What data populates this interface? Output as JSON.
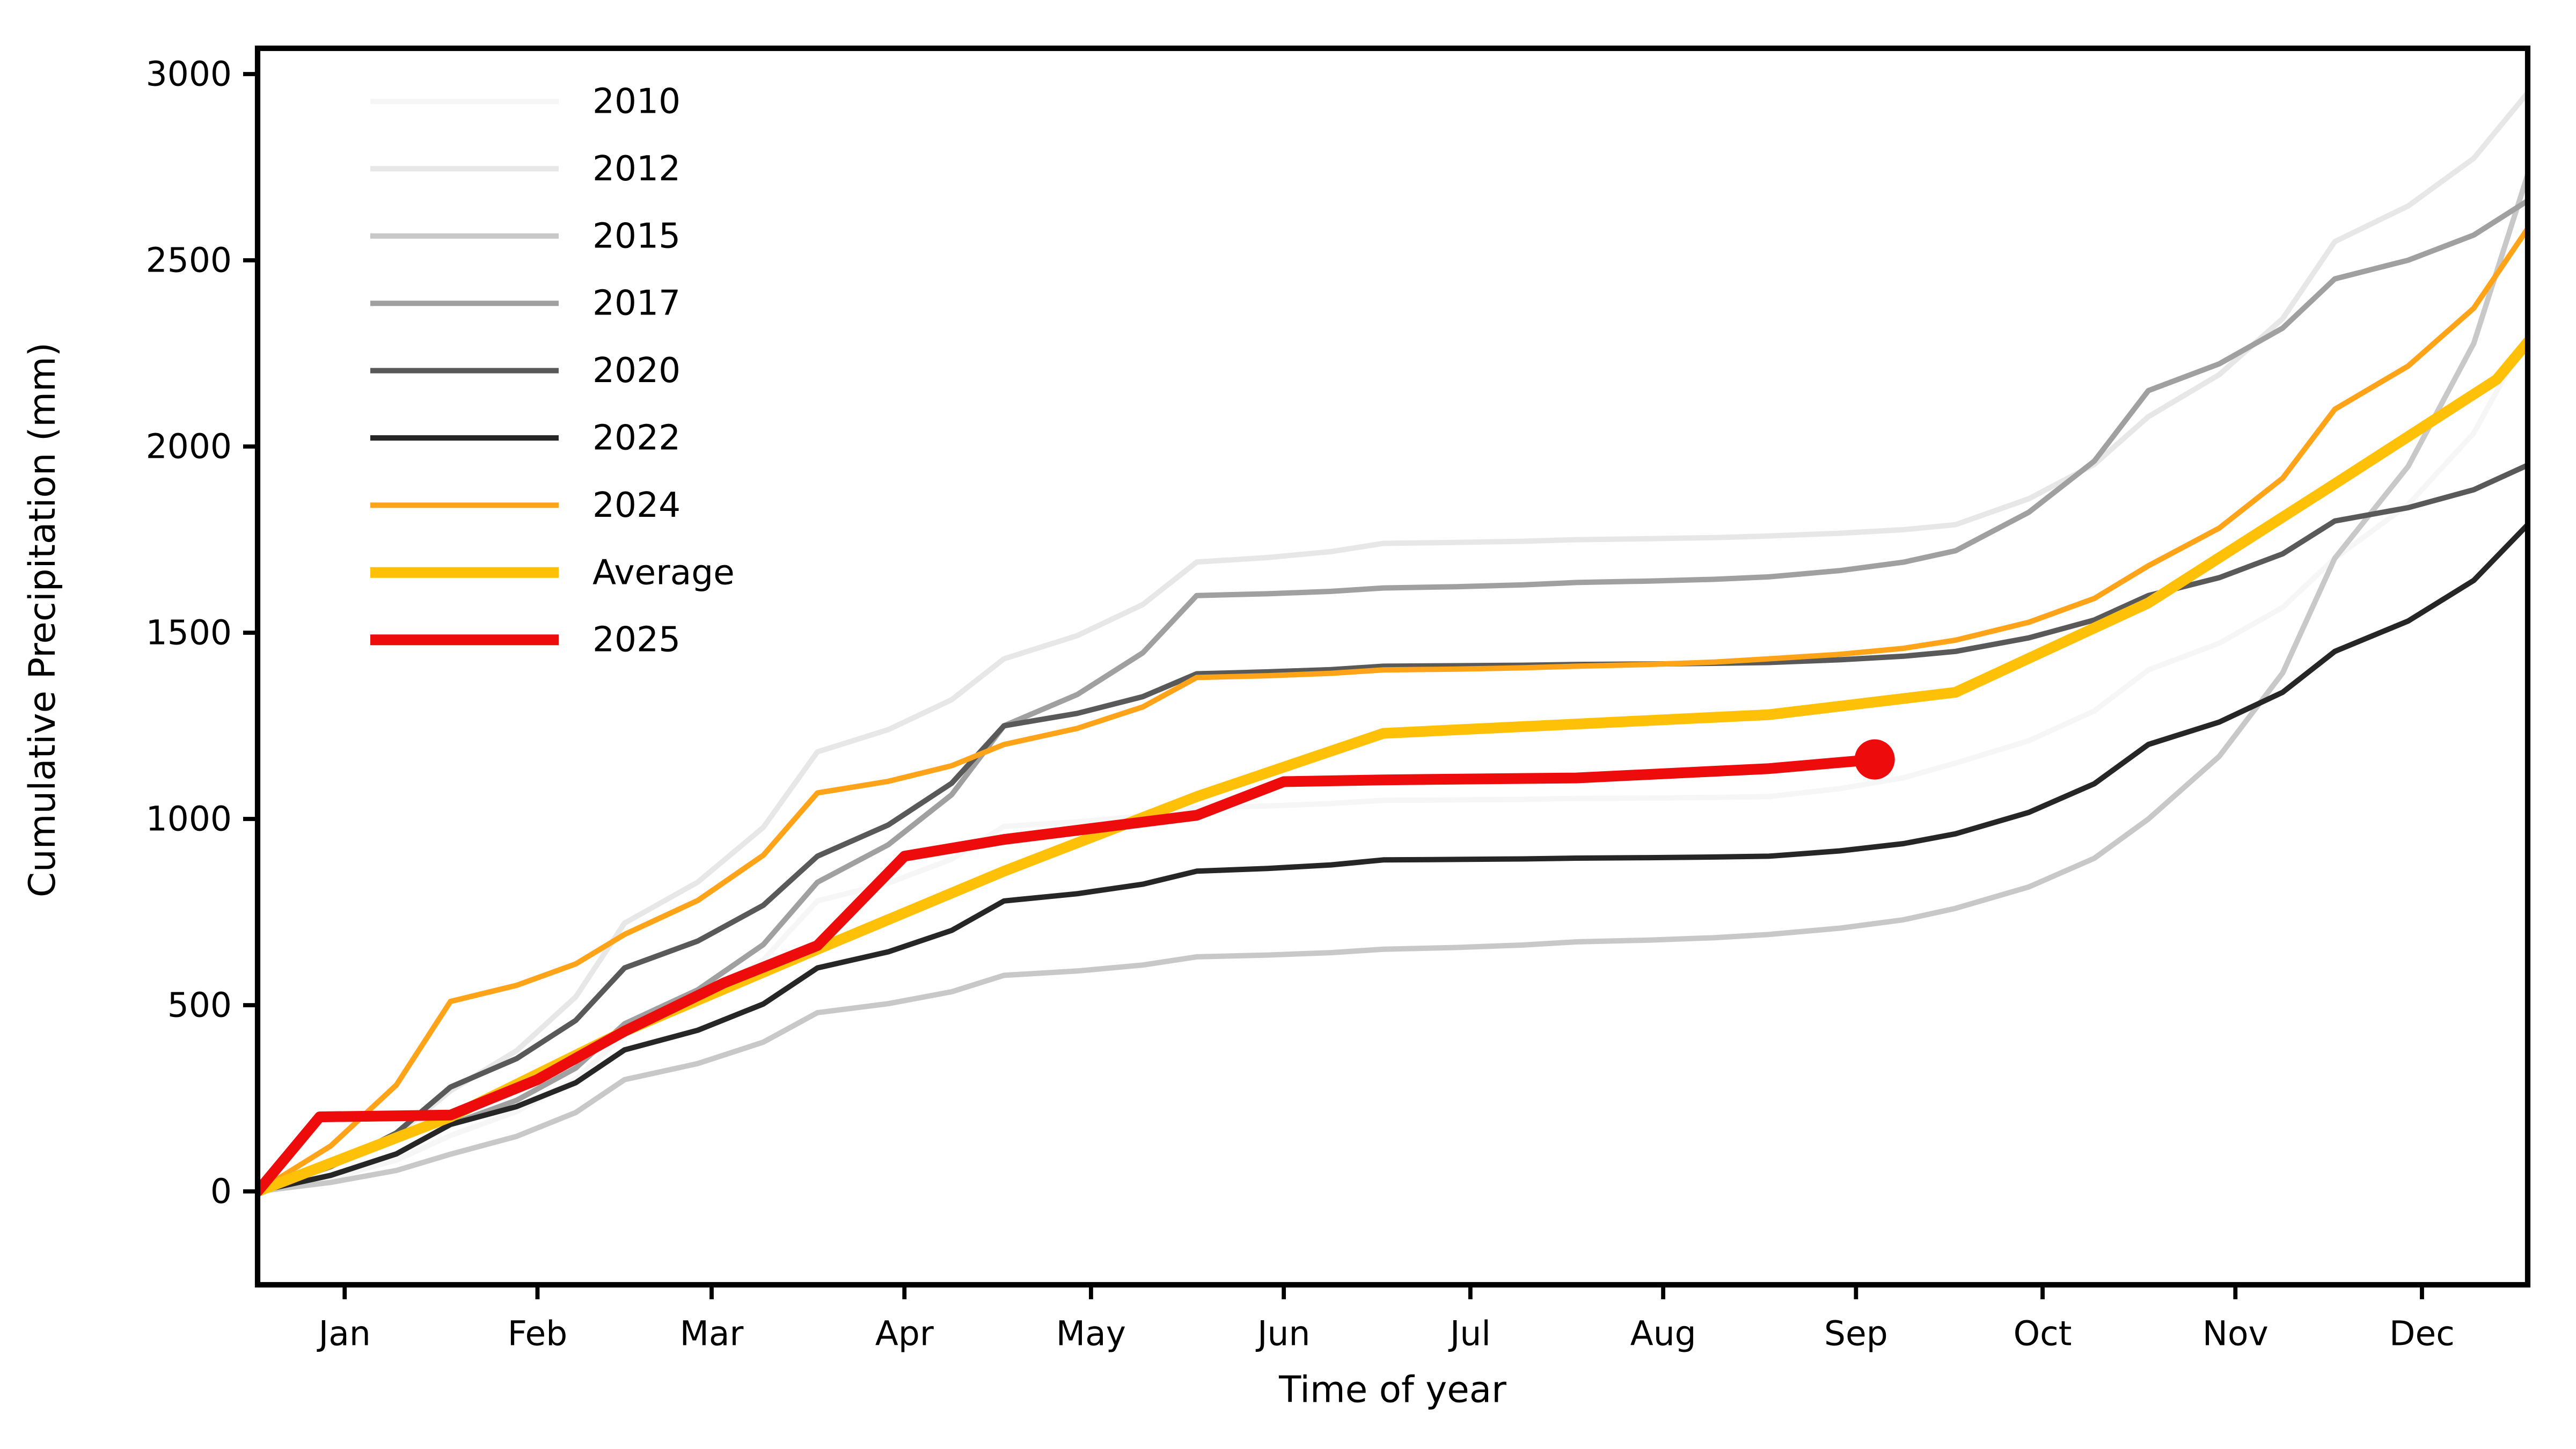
{
  "chart_data": {
    "type": "line",
    "title": "",
    "xlabel": "Time of year",
    "ylabel": "Cumulative Precipitation (mm)",
    "xlim_days": [
      0,
      365
    ],
    "ylim": [
      0,
      3000
    ],
    "grid": false,
    "legend_position": "upper-left-inside",
    "y_ticks": [
      0,
      500,
      1000,
      1500,
      2000,
      2500,
      3000
    ],
    "x_ticks": [
      {
        "label": "Jan",
        "day": 14
      },
      {
        "label": "Feb",
        "day": 45
      },
      {
        "label": "Mar",
        "day": 73
      },
      {
        "label": "Apr",
        "day": 104
      },
      {
        "label": "May",
        "day": 134
      },
      {
        "label": "Jun",
        "day": 165
      },
      {
        "label": "Jul",
        "day": 195
      },
      {
        "label": "Aug",
        "day": 226
      },
      {
        "label": "Sep",
        "day": 257
      },
      {
        "label": "Oct",
        "day": 287
      },
      {
        "label": "Nov",
        "day": 318
      },
      {
        "label": "Dec",
        "day": 348
      }
    ],
    "series": [
      {
        "name": "2010",
        "color": "#f6f6f6",
        "width": 10,
        "texture": true,
        "x": [
          0,
          31,
          59,
          90,
          120,
          151,
          181,
          212,
          243,
          273,
          304,
          334,
          365
        ],
        "values": [
          0,
          150,
          420,
          780,
          980,
          1030,
          1050,
          1055,
          1060,
          1150,
          1400,
          1700,
          2300
        ]
      },
      {
        "name": "2012",
        "color": "#e7e7e7",
        "width": 10,
        "texture": true,
        "x": [
          0,
          31,
          59,
          90,
          120,
          151,
          181,
          212,
          243,
          273,
          304,
          334,
          365
        ],
        "values": [
          0,
          270,
          720,
          1180,
          1430,
          1690,
          1740,
          1750,
          1760,
          1790,
          2080,
          2550,
          2950
        ]
      },
      {
        "name": "2015",
        "color": "#c8c8c8",
        "width": 10,
        "texture": true,
        "x": [
          0,
          31,
          59,
          90,
          120,
          151,
          181,
          212,
          243,
          273,
          304,
          334,
          365
        ],
        "values": [
          0,
          100,
          300,
          480,
          580,
          630,
          650,
          670,
          690,
          760,
          1000,
          1700,
          2730
        ]
      },
      {
        "name": "2017",
        "color": "#a0a0a0",
        "width": 10,
        "texture": true,
        "x": [
          0,
          31,
          59,
          90,
          120,
          151,
          181,
          212,
          243,
          273,
          304,
          334,
          365
        ],
        "values": [
          0,
          180,
          450,
          830,
          1250,
          1600,
          1620,
          1635,
          1650,
          1720,
          2150,
          2450,
          2660
        ]
      },
      {
        "name": "2020",
        "color": "#595959",
        "width": 10,
        "texture": true,
        "x": [
          0,
          31,
          59,
          90,
          120,
          151,
          181,
          212,
          243,
          273,
          304,
          334,
          365
        ],
        "values": [
          0,
          280,
          600,
          900,
          1250,
          1390,
          1410,
          1415,
          1420,
          1450,
          1600,
          1800,
          1950
        ]
      },
      {
        "name": "2022",
        "color": "#262626",
        "width": 10,
        "texture": true,
        "x": [
          0,
          31,
          59,
          90,
          120,
          151,
          181,
          212,
          243,
          273,
          304,
          334,
          365
        ],
        "values": [
          0,
          180,
          380,
          600,
          780,
          860,
          890,
          895,
          900,
          960,
          1200,
          1450,
          1790
        ]
      },
      {
        "name": "2024",
        "color": "#ffa319",
        "width": 10,
        "texture": true,
        "x": [
          0,
          31,
          59,
          90,
          120,
          151,
          181,
          212,
          243,
          273,
          304,
          334,
          365
        ],
        "values": [
          0,
          510,
          690,
          1070,
          1200,
          1380,
          1400,
          1410,
          1430,
          1480,
          1680,
          2100,
          2585
        ]
      },
      {
        "name": "Average",
        "color": "#ffc107",
        "width": 20,
        "texture": false,
        "x": [
          0,
          31,
          59,
          90,
          120,
          151,
          181,
          212,
          243,
          273,
          304,
          334,
          360,
          365
        ],
        "values": [
          0,
          200,
          430,
          650,
          860,
          1060,
          1230,
          1255,
          1280,
          1340,
          1580,
          1900,
          2180,
          2280
        ]
      },
      {
        "name": "2025",
        "color": "#ee0b0b",
        "width": 20,
        "texture": false,
        "x": [
          0,
          10,
          31,
          45,
          59,
          75,
          90,
          104,
          120,
          151,
          165,
          181,
          212,
          243,
          260
        ],
        "values": [
          0,
          200,
          205,
          300,
          430,
          560,
          660,
          900,
          945,
          1010,
          1100,
          1105,
          1110,
          1135,
          1160
        ]
      }
    ],
    "end_marker": {
      "series": "2025",
      "day": 260,
      "value": 1160,
      "radius": 12.5
    }
  },
  "legend": {
    "items": [
      {
        "label": "2010"
      },
      {
        "label": "2012"
      },
      {
        "label": "2015"
      },
      {
        "label": "2017"
      },
      {
        "label": "2020"
      },
      {
        "label": "2022"
      },
      {
        "label": "2024"
      },
      {
        "label": "Average"
      },
      {
        "label": "2025"
      }
    ]
  },
  "axes": {
    "x_label": "Time of year",
    "y_label": "Cumulative Precipitation (mm)"
  },
  "colors": {
    "spine": "#000000",
    "background": "#ffffff",
    "accent_red": "#ee0b0b",
    "accent_gold": "#ffc107",
    "accent_orange": "#ffa319"
  }
}
